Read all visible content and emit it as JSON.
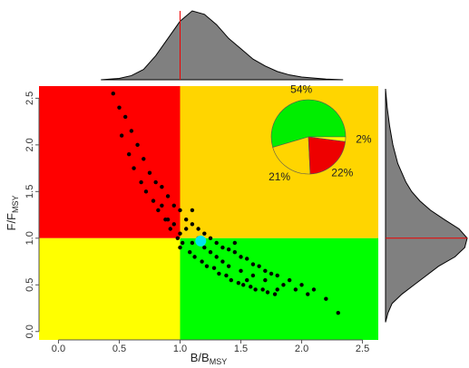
{
  "chart_data": {
    "type": "kobe",
    "x_label": {
      "main": "B/B",
      "sub": "MSY"
    },
    "y_label": {
      "main": "F/F",
      "sub": "MSY"
    },
    "xlim": [
      -0.16,
      2.63
    ],
    "ylim": [
      -0.09,
      2.63
    ],
    "xticks": [
      {
        "value": 0,
        "label": "0.0"
      },
      0.5,
      {
        "value": 1,
        "label": "1.0"
      },
      1.5,
      {
        "value": 2,
        "label": "2.0"
      },
      2.5
    ],
    "yticks": [
      {
        "value": 0,
        "label": "0.0"
      },
      0.5,
      {
        "value": 1,
        "label": "1.0"
      },
      1.5,
      {
        "value": 2,
        "label": "2.0"
      },
      2.5
    ],
    "reference": {
      "x": 1,
      "y": 1
    },
    "quadrant_colors": {
      "top_left": "#ff0000",
      "top_right": "#ffd500",
      "bottom_left": "#ffff00",
      "bottom_right": "#00ff00"
    },
    "points": {
      "color": "#000000",
      "x": [
        0.45,
        0.5,
        0.52,
        0.55,
        0.58,
        0.6,
        0.62,
        0.65,
        0.68,
        0.7,
        0.72,
        0.75,
        0.78,
        0.8,
        0.82,
        0.85,
        0.88,
        0.9,
        0.92,
        0.95,
        0.98,
        1.0,
        1.02,
        1.05,
        1.08,
        1.1,
        1.12,
        1.15,
        1.18,
        1.2,
        1.22,
        1.25,
        1.28,
        1.3,
        1.32,
        1.35,
        1.38,
        1.4,
        1.42,
        1.45,
        1.48,
        1.5,
        1.52,
        1.55,
        1.58,
        1.6,
        1.62,
        1.65,
        1.68,
        1.7,
        1.72,
        1.75,
        1.78,
        1.8,
        1.85,
        1.9,
        1.95,
        2.0,
        2.05,
        2.1,
        2.2,
        2.3,
        0.9,
        1.0,
        1.1,
        1.2,
        1.3,
        1.0,
        1.1,
        1.25,
        1.35,
        1.15,
        0.85,
        0.95,
        1.05,
        1.4,
        1.5,
        1.6,
        1.45,
        1.55,
        1.7,
        1.8
      ],
      "y": [
        2.55,
        2.4,
        2.1,
        2.3,
        1.9,
        2.15,
        1.75,
        2.0,
        1.6,
        1.85,
        1.5,
        1.7,
        1.4,
        1.6,
        1.3,
        1.55,
        1.2,
        1.45,
        1.1,
        1.35,
        1.0,
        1.3,
        0.95,
        1.2,
        0.85,
        1.15,
        0.8,
        1.1,
        0.75,
        1.05,
        0.7,
        1.0,
        0.68,
        0.95,
        0.62,
        0.9,
        0.6,
        0.88,
        0.55,
        0.85,
        0.52,
        0.8,
        0.5,
        0.78,
        0.48,
        0.72,
        0.45,
        0.7,
        0.45,
        0.65,
        0.42,
        0.62,
        0.4,
        0.6,
        0.5,
        0.55,
        0.45,
        0.5,
        0.4,
        0.45,
        0.35,
        0.2,
        1.2,
        1.05,
        0.95,
        0.9,
        0.8,
        0.9,
        1.3,
        0.85,
        0.75,
        1.0,
        1.35,
        1.15,
        1.1,
        0.7,
        0.65,
        0.6,
        0.95,
        0.55,
        0.55,
        0.45
      ]
    },
    "centroid": {
      "x": 1.17,
      "y": 0.97,
      "color": "#00e5ee"
    },
    "top_density": {
      "x": [
        0.35,
        0.5,
        0.6,
        0.7,
        0.8,
        0.9,
        1.0,
        1.1,
        1.2,
        1.3,
        1.4,
        1.5,
        1.6,
        1.7,
        1.8,
        1.9,
        2.0,
        2.2,
        2.34
      ],
      "values": [
        0,
        0.02,
        0.06,
        0.15,
        0.35,
        0.6,
        0.85,
        1.0,
        0.95,
        0.8,
        0.6,
        0.45,
        0.3,
        0.2,
        0.12,
        0.07,
        0.04,
        0.01,
        0
      ],
      "ylim": [
        0,
        1
      ],
      "color": "#808080"
    },
    "right_density": {
      "y": [
        0.1,
        0.2,
        0.3,
        0.4,
        0.5,
        0.6,
        0.7,
        0.8,
        0.9,
        1.0,
        1.1,
        1.2,
        1.3,
        1.4,
        1.5,
        1.6,
        1.8,
        2.0,
        2.2,
        2.4,
        2.6
      ],
      "values": [
        0,
        0.03,
        0.08,
        0.2,
        0.35,
        0.5,
        0.65,
        0.85,
        0.97,
        1.0,
        0.9,
        0.72,
        0.55,
        0.42,
        0.32,
        0.25,
        0.15,
        0.09,
        0.05,
        0.02,
        0
      ],
      "xlim": [
        0,
        1
      ],
      "color": "#808080"
    },
    "pie": {
      "values": [
        54,
        21,
        22,
        2
      ],
      "value_labels": [
        "54%",
        "21%",
        "22%",
        "2%"
      ],
      "colors": [
        "#00ee00",
        "#ffd500",
        "#ee0000",
        "#ffff00"
      ]
    }
  }
}
